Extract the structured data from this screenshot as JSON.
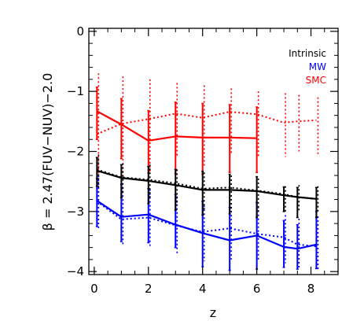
{
  "chart_data": {
    "type": "line",
    "title": "",
    "xlabel": "z",
    "ylabel": "β = 2.47(FUV−NUV)−2.0",
    "xlim": [
      -0.2,
      9.0
    ],
    "ylim": [
      -4.05,
      0.05
    ],
    "x_ticks": [
      "0",
      "2",
      "4",
      "6",
      "8"
    ],
    "y_ticks": [
      "0",
      "−1",
      "−2",
      "−3",
      "−4"
    ],
    "legend_placement": "top-right",
    "grid": false,
    "series": [
      {
        "name": "Intrinsic",
        "color": "#000000",
        "solid": {
          "x": [
            0.1,
            1.0,
            2.0,
            3.0,
            4.0,
            5.0,
            6.0,
            7.0,
            7.5,
            8.2
          ],
          "y": [
            -2.32,
            -2.44,
            -2.49,
            -2.56,
            -2.64,
            -2.64,
            -2.66,
            -2.73,
            -2.76,
            -2.79
          ],
          "err_high": [
            -2.1,
            -2.22,
            -2.25,
            -2.3,
            -2.33,
            -2.38,
            -2.42,
            -2.59,
            -2.6,
            -2.6
          ],
          "err_low": [
            -2.58,
            -2.77,
            -2.87,
            -2.98,
            -3.06,
            -3.04,
            -3.1,
            -3.0,
            -3.1,
            -3.1
          ]
        },
        "dotted": {
          "x": [
            0.1,
            1.0,
            2.0,
            3.0,
            4.0,
            5.0,
            6.0,
            7.0,
            7.5,
            8.2
          ],
          "y": [
            -2.3,
            -2.43,
            -2.47,
            -2.53,
            -2.62,
            -2.6,
            -2.65,
            -2.71,
            -2.76,
            -2.79
          ],
          "err_high": [
            -2.05,
            -2.2,
            -2.22,
            -2.3,
            -2.35,
            -2.4,
            -2.45,
            -2.58,
            -2.56,
            -2.58
          ],
          "err_low": [
            -2.6,
            -2.72,
            -2.8,
            -2.9,
            -2.98,
            -3.0,
            -3.03,
            -3.0,
            -3.0,
            -3.0
          ]
        }
      },
      {
        "name": "MW",
        "color": "#0000ff",
        "solid": {
          "x": [
            0.1,
            1.0,
            2.0,
            3.0,
            4.0,
            5.0,
            6.0,
            7.0,
            7.5,
            8.2
          ],
          "y": [
            -2.82,
            -3.09,
            -3.05,
            -3.22,
            -3.36,
            -3.48,
            -3.4,
            -3.59,
            -3.62,
            -3.55
          ],
          "err_high": [
            -2.45,
            -2.55,
            -2.62,
            -2.72,
            -2.83,
            -2.93,
            -2.85,
            -3.15,
            -3.22,
            -3.0
          ],
          "err_low": [
            -3.25,
            -3.5,
            -3.52,
            -3.6,
            -3.92,
            -3.98,
            -3.96,
            -3.93,
            -3.96,
            -3.95
          ]
        },
        "dotted": {
          "x": [
            0.1,
            1.0,
            2.0,
            3.0,
            4.0,
            5.0,
            6.0,
            7.0,
            7.5,
            8.2
          ],
          "y": [
            -2.83,
            -3.13,
            -3.1,
            -3.23,
            -3.34,
            -3.28,
            -3.37,
            -3.43,
            -3.55,
            -3.58
          ],
          "err_high": [
            -2.4,
            -2.6,
            -2.63,
            -2.75,
            -2.9,
            -2.86,
            -2.92,
            -3.06,
            -3.12,
            -3.08
          ],
          "err_low": [
            -3.3,
            -3.55,
            -3.58,
            -3.7,
            -3.83,
            -3.8,
            -3.83,
            -3.86,
            -3.96,
            -4.0
          ]
        }
      },
      {
        "name": "SMC",
        "color": "#ff0000",
        "solid": {
          "x": [
            0.1,
            1.0,
            2.0,
            3.0,
            4.0,
            5.0,
            6.0
          ],
          "y": [
            -1.33,
            -1.55,
            -1.82,
            -1.75,
            -1.77,
            -1.77,
            -1.78
          ],
          "err_high": [
            -0.93,
            -1.12,
            -1.32,
            -1.18,
            -1.2,
            -1.22,
            -1.26
          ],
          "err_low": [
            -1.8,
            -2.12,
            -2.36,
            -2.37,
            -2.38,
            -2.35,
            -2.35
          ]
        },
        "dotted": {
          "x": [
            0.1,
            1.0,
            2.0,
            3.0,
            4.0,
            5.0,
            6.0,
            7.0,
            7.5,
            8.2
          ],
          "y": [
            -1.71,
            -1.54,
            -1.46,
            -1.37,
            -1.44,
            -1.34,
            -1.38,
            -1.52,
            -1.5,
            -1.48
          ],
          "err_high": [
            -0.7,
            -0.75,
            -0.8,
            -0.86,
            -0.9,
            -0.95,
            -1.0,
            -1.03,
            -1.06,
            -1.1
          ],
          "err_low": [
            -2.68,
            -2.48,
            -2.36,
            -2.1,
            -2.26,
            -2.04,
            -2.08,
            -2.09,
            -2.0,
            -2.06
          ]
        }
      }
    ]
  }
}
